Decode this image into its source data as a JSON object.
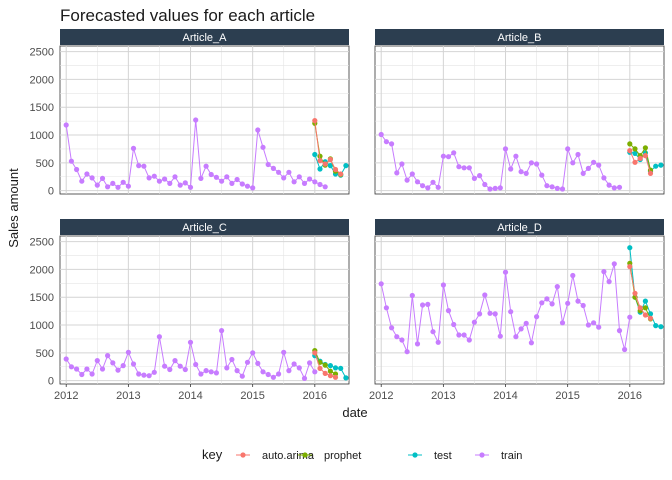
{
  "chart_data": {
    "type": "line",
    "title": "Forecasted values for each article",
    "xlabel": "date",
    "ylabel": "Sales amount",
    "x_ticks": [
      "2012",
      "2013",
      "2014",
      "2015",
      "2016"
    ],
    "y_ticks": [
      0,
      500,
      1000,
      1500,
      2000,
      2500
    ],
    "xlim": [
      2011.9,
      2016.55
    ],
    "ylim": [
      -60,
      2600
    ],
    "grid": true,
    "legend": {
      "title": "key",
      "position": "bottom",
      "entries": [
        "auto.arima",
        "prophet",
        "test",
        "train"
      ]
    },
    "colors": {
      "auto.arima": "#F8766D",
      "prophet": "#7CAE00",
      "test": "#00BFC4",
      "train": "#C77CFF",
      "strip": "#2C3E50"
    },
    "panels": [
      {
        "name": "Article_A",
        "train": {
          "start": 2012.0,
          "values": [
            1180,
            530,
            380,
            170,
            300,
            230,
            100,
            220,
            70,
            130,
            60,
            150,
            80,
            760,
            450,
            440,
            230,
            260,
            170,
            210,
            130,
            250,
            100,
            140,
            60,
            1270,
            220,
            440,
            290,
            240,
            170,
            250,
            130,
            200,
            120,
            80,
            50,
            1090,
            780,
            470,
            400,
            330,
            230,
            330,
            160,
            250,
            130,
            210,
            160,
            110,
            70
          ]
        },
        "test": {
          "start": 2016.0,
          "values": [
            650,
            390,
            520,
            450,
            300,
            280,
            450
          ]
        },
        "auto.arima": {
          "start": 2016.0,
          "values": [
            1260,
            540,
            480,
            560,
            380,
            300
          ]
        },
        "prophet": {
          "start": 2016.0,
          "values": [
            1210,
            620,
            460,
            570,
            350,
            290
          ]
        }
      },
      {
        "name": "Article_B",
        "train": {
          "start": 2012.0,
          "values": [
            1010,
            880,
            840,
            320,
            480,
            190,
            300,
            160,
            90,
            50,
            150,
            60,
            620,
            610,
            680,
            430,
            410,
            410,
            220,
            270,
            110,
            30,
            40,
            50,
            750,
            390,
            620,
            340,
            310,
            500,
            480,
            280,
            90,
            70,
            40,
            30,
            750,
            500,
            650,
            310,
            400,
            510,
            460,
            230,
            100,
            50,
            60
          ]
        },
        "test": {
          "start": 2016.0,
          "values": [
            690,
            670,
            560,
            680,
            350,
            440,
            460
          ]
        },
        "auto.arima": {
          "start": 2016.0,
          "values": [
            720,
            510,
            580,
            630,
            310
          ]
        },
        "prophet": {
          "start": 2016.0,
          "values": [
            840,
            750,
            630,
            770,
            370
          ]
        }
      },
      {
        "name": "Article_C",
        "train": {
          "start": 2012.0,
          "values": [
            390,
            250,
            210,
            110,
            210,
            120,
            360,
            210,
            450,
            320,
            190,
            270,
            510,
            300,
            120,
            100,
            90,
            150,
            790,
            260,
            200,
            360,
            260,
            200,
            690,
            290,
            120,
            180,
            160,
            140,
            900,
            230,
            380,
            180,
            80,
            330,
            500,
            310,
            160,
            110,
            60,
            120,
            510,
            180,
            300,
            230,
            40,
            320,
            160
          ]
        },
        "test": {
          "start": 2016.0,
          "values": [
            450,
            350,
            290,
            270,
            230,
            220,
            50
          ]
        },
        "auto.arima": {
          "start": 2016.0,
          "values": [
            500,
            220,
            130,
            90,
            60
          ]
        },
        "prophet": {
          "start": 2016.0,
          "values": [
            540,
            330,
            280,
            170,
            120
          ]
        }
      },
      {
        "name": "Article_D",
        "train": {
          "start": 2012.0,
          "values": [
            1740,
            1310,
            950,
            790,
            730,
            520,
            1530,
            660,
            1360,
            1370,
            880,
            690,
            1720,
            1260,
            1010,
            820,
            820,
            730,
            1050,
            1200,
            1540,
            1210,
            1200,
            800,
            1950,
            1240,
            790,
            930,
            1030,
            680,
            1150,
            1400,
            1470,
            1380,
            1690,
            1040,
            1390,
            1890,
            1430,
            1350,
            1000,
            1040,
            960,
            1960,
            1780,
            2100,
            900,
            560,
            1140
          ]
        },
        "test": {
          "start": 2016.0,
          "values": [
            2390,
            1500,
            1230,
            1430,
            1200,
            990,
            970
          ]
        },
        "auto.arima": {
          "start": 2016.0,
          "values": [
            2050,
            1570,
            1310,
            1180,
            1120
          ]
        },
        "prophet": {
          "start": 2016.0,
          "values": [
            2110,
            1500,
            1260,
            1310,
            1110
          ]
        }
      }
    ]
  }
}
